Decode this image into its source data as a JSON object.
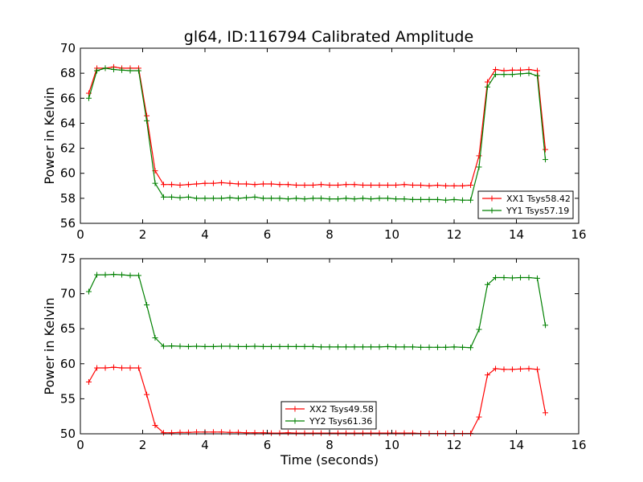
{
  "page_title": "gl64, ID:116794 Calibrated Amplitude",
  "chart_data": [
    {
      "type": "line",
      "title": "gl64, ID:116794 Calibrated Amplitude",
      "xlabel": "",
      "ylabel": "Power in Kelvin",
      "xlim": [
        0,
        16
      ],
      "ylim": [
        56,
        70
      ],
      "xticks": [
        "0",
        "2",
        "4",
        "6",
        "8",
        "10",
        "12",
        "14",
        "16"
      ],
      "yticks": [
        "56",
        "58",
        "60",
        "62",
        "64",
        "66",
        "68",
        "70"
      ],
      "legend_position": "lower-right",
      "grid": false,
      "x": [
        0.27,
        0.53,
        0.8,
        1.07,
        1.33,
        1.6,
        1.87,
        2.13,
        2.4,
        2.67,
        2.93,
        3.2,
        3.47,
        3.73,
        4.0,
        4.27,
        4.53,
        4.8,
        5.07,
        5.33,
        5.6,
        5.87,
        6.13,
        6.4,
        6.67,
        6.93,
        7.2,
        7.47,
        7.73,
        8.0,
        8.27,
        8.53,
        8.8,
        9.07,
        9.33,
        9.6,
        9.87,
        10.13,
        10.4,
        10.67,
        10.93,
        11.2,
        11.47,
        11.73,
        12.0,
        12.27,
        12.53,
        12.8,
        13.07,
        13.33,
        13.6,
        13.87,
        14.13,
        14.4,
        14.67,
        14.93
      ],
      "series": [
        {
          "name": "XX1 Tsys58.42",
          "color": "#ff0000",
          "values": [
            66.4,
            68.4,
            68.4,
            68.5,
            68.4,
            68.4,
            68.4,
            64.6,
            60.2,
            59.1,
            59.1,
            59.05,
            59.1,
            59.15,
            59.2,
            59.2,
            59.25,
            59.2,
            59.15,
            59.15,
            59.1,
            59.15,
            59.15,
            59.1,
            59.1,
            59.05,
            59.05,
            59.05,
            59.1,
            59.05,
            59.05,
            59.1,
            59.1,
            59.05,
            59.05,
            59.05,
            59.05,
            59.05,
            59.1,
            59.05,
            59.05,
            59.0,
            59.05,
            59.0,
            59.0,
            59.0,
            59.05,
            61.4,
            67.3,
            68.3,
            68.2,
            68.25,
            68.25,
            68.3,
            68.2,
            61.9
          ]
        },
        {
          "name": "YY1 Tsys57.19",
          "color": "#008000",
          "values": [
            66.0,
            68.2,
            68.4,
            68.3,
            68.25,
            68.2,
            68.2,
            64.2,
            59.2,
            58.1,
            58.1,
            58.05,
            58.1,
            58.0,
            58.0,
            58.0,
            58.0,
            58.05,
            58.0,
            58.05,
            58.1,
            58.0,
            58.0,
            58.0,
            57.95,
            58.0,
            57.95,
            58.0,
            58.0,
            57.95,
            57.95,
            58.0,
            57.95,
            58.0,
            57.95,
            58.0,
            58.0,
            57.95,
            57.95,
            57.9,
            57.9,
            57.9,
            57.9,
            57.85,
            57.9,
            57.85,
            57.85,
            60.5,
            66.9,
            67.9,
            67.9,
            67.9,
            67.95,
            68.0,
            67.8,
            61.1
          ]
        }
      ]
    },
    {
      "type": "line",
      "title": "",
      "xlabel": "Time (seconds)",
      "ylabel": "Power in Kelvin",
      "xlim": [
        0,
        16
      ],
      "ylim": [
        50,
        75
      ],
      "xticks": [
        "0",
        "2",
        "4",
        "6",
        "8",
        "10",
        "12",
        "14",
        "16"
      ],
      "yticks": [
        "50",
        "55",
        "60",
        "65",
        "70",
        "75"
      ],
      "legend_position": "lower-center",
      "grid": false,
      "x": [
        0.27,
        0.53,
        0.8,
        1.07,
        1.33,
        1.6,
        1.87,
        2.13,
        2.4,
        2.67,
        2.93,
        3.2,
        3.47,
        3.73,
        4.0,
        4.27,
        4.53,
        4.8,
        5.07,
        5.33,
        5.6,
        5.87,
        6.13,
        6.4,
        6.67,
        6.93,
        7.2,
        7.47,
        7.73,
        8.0,
        8.27,
        8.53,
        8.8,
        9.07,
        9.33,
        9.6,
        9.87,
        10.13,
        10.4,
        10.67,
        10.93,
        11.2,
        11.47,
        11.73,
        12.0,
        12.27,
        12.53,
        12.8,
        13.07,
        13.33,
        13.6,
        13.87,
        14.13,
        14.4,
        14.67,
        14.93
      ],
      "series": [
        {
          "name": "XX2 Tsys49.58",
          "color": "#ff0000",
          "values": [
            57.4,
            59.4,
            59.4,
            59.5,
            59.4,
            59.4,
            59.4,
            55.6,
            51.2,
            50.15,
            50.15,
            50.2,
            50.2,
            50.25,
            50.25,
            50.25,
            50.25,
            50.2,
            50.2,
            50.15,
            50.15,
            50.15,
            50.1,
            50.1,
            50.15,
            50.1,
            50.1,
            50.1,
            50.1,
            50.1,
            50.1,
            50.1,
            50.1,
            50.1,
            50.1,
            50.1,
            50.1,
            50.1,
            50.1,
            50.1,
            50.05,
            50.05,
            50.05,
            50.05,
            50.05,
            50.05,
            50.05,
            52.4,
            58.4,
            59.3,
            59.2,
            59.2,
            59.25,
            59.3,
            59.2,
            53.0
          ]
        },
        {
          "name": "YY2 Tsys61.36",
          "color": "#008000",
          "values": [
            70.3,
            72.7,
            72.7,
            72.75,
            72.7,
            72.6,
            72.6,
            68.4,
            63.7,
            62.5,
            62.55,
            62.5,
            62.45,
            62.5,
            62.45,
            62.45,
            62.5,
            62.5,
            62.45,
            62.45,
            62.5,
            62.45,
            62.45,
            62.45,
            62.45,
            62.45,
            62.45,
            62.45,
            62.4,
            62.4,
            62.4,
            62.4,
            62.4,
            62.4,
            62.4,
            62.4,
            62.45,
            62.4,
            62.4,
            62.4,
            62.35,
            62.35,
            62.35,
            62.35,
            62.4,
            62.35,
            62.3,
            64.9,
            71.3,
            72.3,
            72.3,
            72.25,
            72.3,
            72.3,
            72.2,
            65.5
          ]
        }
      ]
    }
  ]
}
